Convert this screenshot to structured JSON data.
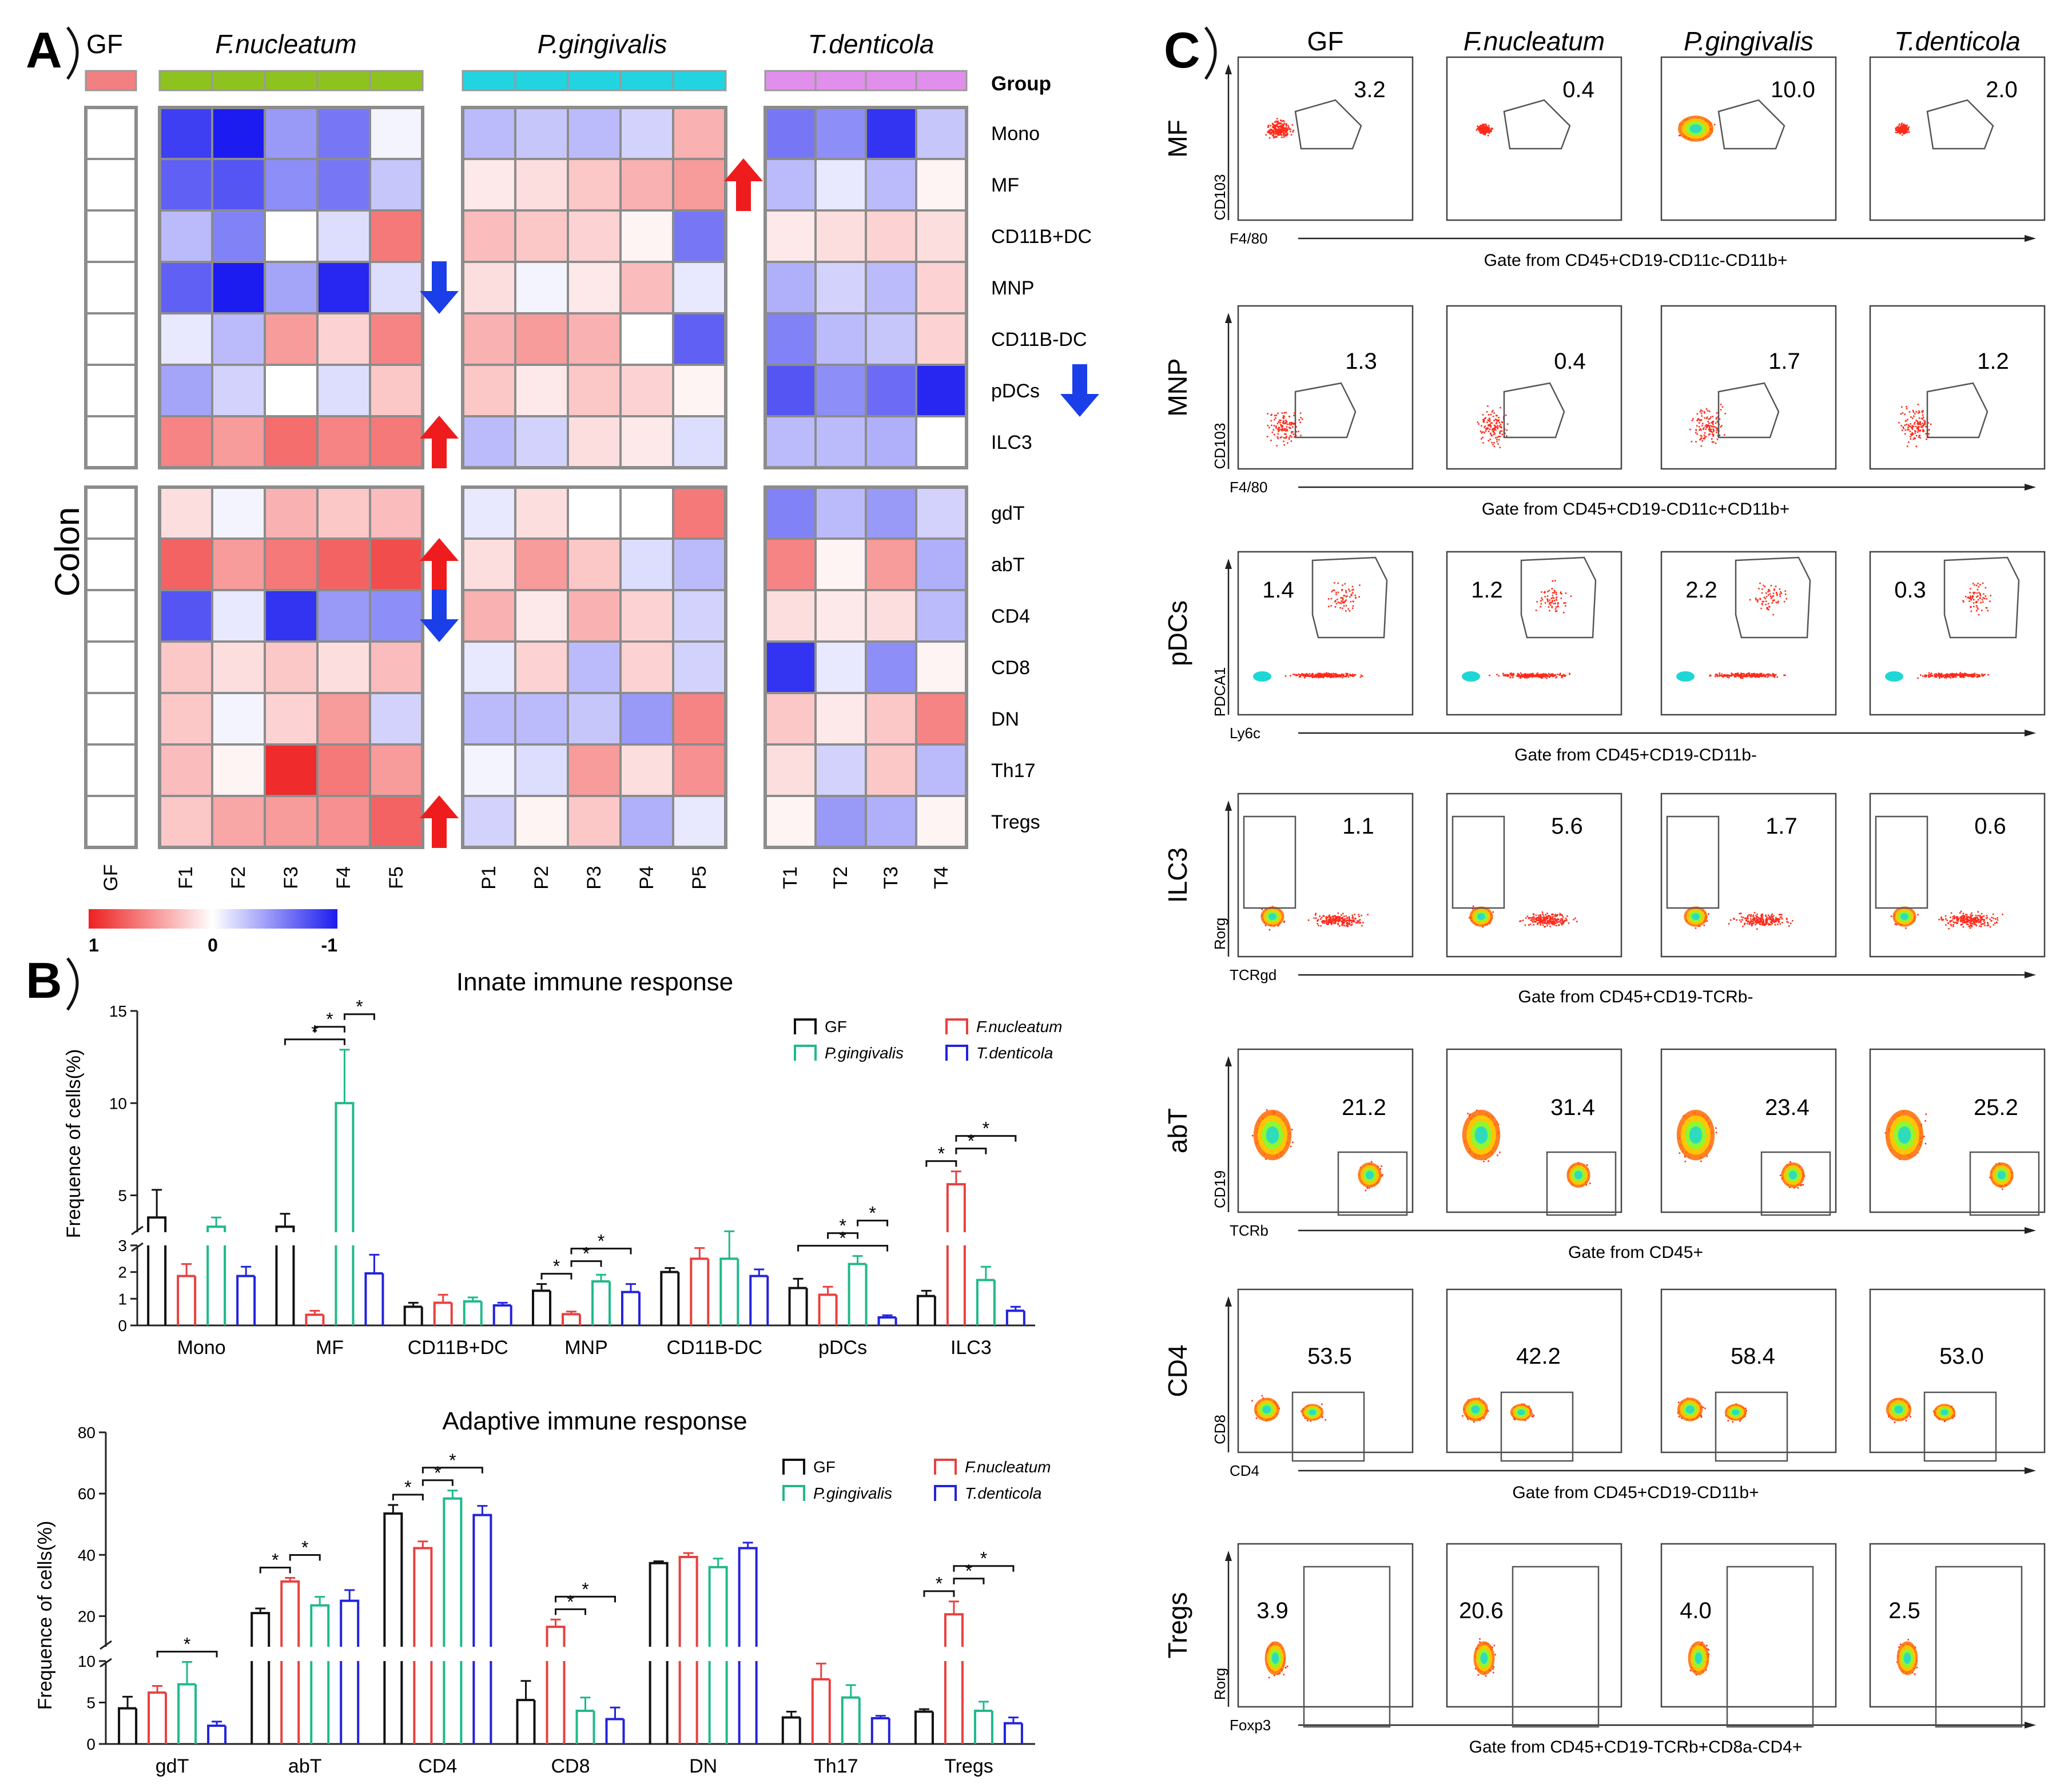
{
  "figure": {
    "panel_a_label": "A",
    "panel_b_label": "B",
    "panel_c_label": "C"
  },
  "chart_data": [
    {
      "id": "A",
      "type": "heatmap",
      "tissue_label": "Colon",
      "group_row_label": "Group",
      "groups": [
        {
          "name": "GF",
          "italic": false,
          "color": "#f28080",
          "samples": [
            "GF"
          ]
        },
        {
          "name": "F.nucleatum",
          "italic": true,
          "color": "#8dc21f",
          "samples": [
            "F1",
            "F2",
            "F3",
            "F4",
            "F5"
          ]
        },
        {
          "name": "P.gingivalis",
          "italic": true,
          "color": "#22d3e0",
          "samples": [
            "P1",
            "P2",
            "P3",
            "P4",
            "P5"
          ]
        },
        {
          "name": "T.denticola",
          "italic": true,
          "color": "#e090ea",
          "samples": [
            "T1",
            "T2",
            "T3",
            "T4"
          ]
        }
      ],
      "row_blocks": [
        [
          "Mono",
          "MF",
          "CD11B+DC",
          "MNP",
          "CD11B-DC",
          "pDCs",
          "ILC3"
        ],
        [
          "gdT",
          "abT",
          "CD4",
          "CD8",
          "DN",
          "Th17",
          "Tregs"
        ]
      ],
      "values": {
        "GF": [
          0,
          0,
          0,
          0,
          0,
          0,
          0,
          0,
          0,
          0,
          0,
          0,
          0,
          0
        ],
        "F.nucleatum": [
          [
            -0.85,
            -1.0,
            -0.45,
            -0.6,
            -0.05
          ],
          [
            -0.7,
            -0.75,
            -0.5,
            -0.6,
            -0.25
          ],
          [
            -0.3,
            -0.55,
            0.0,
            -0.15,
            0.6
          ],
          [
            -0.7,
            -1.0,
            -0.4,
            -0.95,
            -0.15
          ],
          [
            -0.1,
            -0.3,
            0.45,
            0.2,
            0.55
          ],
          [
            -0.4,
            -0.2,
            0.0,
            -0.15,
            0.25
          ],
          [
            0.55,
            0.45,
            0.65,
            0.55,
            0.6
          ],
          [
            0.15,
            -0.05,
            0.35,
            0.25,
            0.3
          ],
          [
            0.7,
            0.45,
            0.6,
            0.7,
            0.8
          ],
          [
            -0.75,
            -0.1,
            -0.9,
            -0.45,
            -0.5
          ],
          [
            0.25,
            0.15,
            0.25,
            0.15,
            0.3
          ],
          [
            0.25,
            -0.05,
            0.2,
            0.45,
            -0.2
          ],
          [
            0.3,
            0.05,
            0.95,
            0.6,
            0.45
          ],
          [
            0.25,
            0.4,
            0.45,
            0.5,
            0.7
          ]
        ],
        "P.gingivalis": [
          [
            -0.3,
            -0.25,
            -0.3,
            -0.2,
            0.35
          ],
          [
            0.1,
            0.15,
            0.25,
            0.35,
            0.45
          ],
          [
            0.3,
            0.25,
            0.2,
            0.05,
            -0.6
          ],
          [
            0.15,
            -0.05,
            0.1,
            0.3,
            -0.1
          ],
          [
            0.35,
            0.45,
            0.35,
            0.0,
            -0.7
          ],
          [
            0.25,
            0.1,
            0.25,
            0.2,
            0.05
          ],
          [
            -0.3,
            -0.2,
            0.15,
            0.1,
            -0.15
          ],
          [
            -0.1,
            0.15,
            0.0,
            0.0,
            0.6
          ],
          [
            0.15,
            0.45,
            0.25,
            -0.15,
            -0.3
          ],
          [
            0.35,
            0.1,
            0.35,
            0.2,
            -0.2
          ],
          [
            -0.1,
            0.2,
            -0.3,
            0.2,
            -0.2
          ],
          [
            -0.3,
            -0.3,
            -0.25,
            -0.45,
            0.55
          ],
          [
            -0.05,
            -0.15,
            0.45,
            0.15,
            0.5
          ],
          [
            -0.2,
            0.05,
            0.25,
            -0.35,
            -0.1
          ]
        ],
        "T.denticola": [
          [
            -0.6,
            -0.5,
            -0.9,
            -0.25
          ],
          [
            -0.3,
            -0.1,
            -0.3,
            0.05
          ],
          [
            0.1,
            0.15,
            0.2,
            0.15
          ],
          [
            -0.35,
            -0.2,
            -0.3,
            0.2
          ],
          [
            -0.55,
            -0.3,
            -0.25,
            0.2
          ],
          [
            -0.75,
            -0.5,
            -0.65,
            -0.95
          ],
          [
            -0.3,
            -0.3,
            -0.35,
            0.0
          ],
          [
            -0.55,
            -0.3,
            -0.45,
            -0.2
          ],
          [
            0.55,
            0.05,
            0.45,
            -0.35
          ],
          [
            0.15,
            0.1,
            0.15,
            -0.3
          ],
          [
            -0.9,
            -0.1,
            -0.5,
            0.05
          ],
          [
            0.25,
            0.1,
            0.25,
            0.55
          ],
          [
            0.15,
            -0.2,
            0.25,
            -0.3
          ],
          [
            0.05,
            -0.45,
            -0.35,
            0.05
          ]
        ]
      },
      "arrows": [
        {
          "row": "MF",
          "after_group": "P.gingivalis",
          "direction": "up"
        },
        {
          "row": "MNP",
          "after_group": "F.nucleatum",
          "direction": "down"
        },
        {
          "row": "pDCs",
          "after_group": "T.denticola",
          "direction": "down"
        },
        {
          "row": "ILC3",
          "after_group": "F.nucleatum",
          "direction": "up"
        },
        {
          "row": "abT",
          "after_group": "F.nucleatum",
          "direction": "up"
        },
        {
          "row": "CD4",
          "after_group": "F.nucleatum",
          "direction": "down"
        },
        {
          "row": "Tregs",
          "after_group": "F.nucleatum",
          "direction": "up"
        }
      ],
      "color_scale": {
        "max_label": "1",
        "mid_label": "0",
        "min_label": "-1",
        "high_color": "#ee2020",
        "mid_color": "#ffffff",
        "low_color": "#1c1cf0"
      }
    },
    {
      "id": "B1",
      "type": "bar",
      "title": "Innate immune response",
      "ylabel": "Frequence of cells(%)",
      "categories": [
        "Mono",
        "MF",
        "CD11B+DC",
        "MNP",
        "CD11B-DC",
        "pDCs",
        "ILC3"
      ],
      "broken_axis": {
        "lower": [
          0,
          3
        ],
        "upper": [
          3,
          15
        ],
        "lower_ticks": [
          "0",
          "1",
          "2",
          "3"
        ],
        "upper_ticks": [
          "5",
          "10",
          "15"
        ]
      },
      "series": [
        {
          "name": "GF",
          "italic": false,
          "color": "#111111",
          "values": [
            3.8,
            3.3,
            0.7,
            1.3,
            2.0,
            1.4,
            1.1
          ],
          "errors": [
            1.5,
            0.7,
            0.15,
            0.25,
            0.15,
            0.35,
            0.2
          ]
        },
        {
          "name": "F.nucleatum",
          "italic": true,
          "color": "#e84040",
          "values": [
            1.85,
            0.4,
            0.85,
            0.42,
            2.5,
            1.15,
            5.6
          ],
          "errors": [
            0.45,
            0.15,
            0.3,
            0.1,
            0.4,
            0.3,
            0.7
          ]
        },
        {
          "name": "P.gingivalis",
          "italic": true,
          "color": "#1fb98a",
          "values": [
            3.3,
            10.0,
            0.9,
            1.65,
            2.5,
            2.3,
            1.7
          ],
          "errors": [
            0.5,
            2.9,
            0.15,
            0.25,
            0.55,
            0.3,
            0.5
          ]
        },
        {
          "name": "T.denticola",
          "italic": true,
          "color": "#2222dd",
          "values": [
            1.85,
            1.95,
            0.75,
            1.25,
            1.85,
            0.3,
            0.55
          ],
          "errors": [
            0.35,
            0.7,
            0.1,
            0.3,
            0.25,
            0.08,
            0.15
          ]
        }
      ],
      "significance": [
        {
          "category": "MF",
          "from": 0,
          "to": 2,
          "label": "*"
        },
        {
          "category": "MF",
          "from": 1,
          "to": 2,
          "label": "*"
        },
        {
          "category": "MF",
          "from": 2,
          "to": 3,
          "label": "*"
        },
        {
          "category": "MNP",
          "from": 0,
          "to": 1,
          "label": "*"
        },
        {
          "category": "MNP",
          "from": 1,
          "to": 2,
          "label": "*"
        },
        {
          "category": "MNP",
          "from": 1,
          "to": 3,
          "label": "*"
        },
        {
          "category": "pDCs",
          "from": 0,
          "to": 3,
          "label": "*"
        },
        {
          "category": "pDCs",
          "from": 1,
          "to": 2,
          "label": "*"
        },
        {
          "category": "pDCs",
          "from": 2,
          "to": 3,
          "label": "*"
        },
        {
          "category": "ILC3",
          "from": 0,
          "to": 1,
          "label": "*"
        },
        {
          "category": "ILC3",
          "from": 1,
          "to": 2,
          "label": "*"
        },
        {
          "category": "ILC3",
          "from": 1,
          "to": 3,
          "label": "*"
        }
      ]
    },
    {
      "id": "B2",
      "type": "bar",
      "title": "Adaptive immune response",
      "ylabel": "Frequence of cells(%)",
      "categories": [
        "gdT",
        "abT",
        "CD4",
        "CD8",
        "DN",
        "Th17",
        "Tregs"
      ],
      "broken_axis": {
        "lower": [
          0,
          10
        ],
        "upper": [
          10,
          80
        ],
        "lower_ticks": [
          "0",
          "5",
          "10"
        ],
        "upper_ticks": [
          "20",
          "40",
          "60",
          "80"
        ]
      },
      "series": [
        {
          "name": "GF",
          "italic": false,
          "color": "#111111",
          "values": [
            4.3,
            21.0,
            53.5,
            5.3,
            37.3,
            3.2,
            3.9
          ],
          "errors": [
            1.4,
            1.5,
            2.8,
            2.3,
            0.6,
            0.7,
            0.3
          ]
        },
        {
          "name": "F.nucleatum",
          "italic": true,
          "color": "#e84040",
          "values": [
            6.2,
            31.3,
            42.2,
            16.5,
            39.3,
            7.8,
            20.6
          ],
          "errors": [
            0.8,
            1.2,
            2.2,
            2.4,
            1.3,
            1.9,
            4.2
          ]
        },
        {
          "name": "P.gingivalis",
          "italic": true,
          "color": "#1fb98a",
          "values": [
            7.2,
            23.5,
            58.4,
            4.0,
            36.0,
            5.6,
            4.0
          ],
          "errors": [
            2.7,
            2.8,
            2.6,
            1.6,
            2.8,
            1.5,
            1.1
          ]
        },
        {
          "name": "T.denticola",
          "italic": true,
          "color": "#2222dd",
          "values": [
            2.2,
            25.0,
            53.0,
            3.0,
            42.2,
            3.1,
            2.5
          ],
          "errors": [
            0.5,
            3.5,
            3.0,
            1.4,
            1.8,
            0.3,
            0.7
          ]
        }
      ],
      "significance": [
        {
          "category": "gdT",
          "from": 1,
          "to": 3,
          "label": "*"
        },
        {
          "category": "abT",
          "from": 0,
          "to": 1,
          "label": "*"
        },
        {
          "category": "abT",
          "from": 1,
          "to": 2,
          "label": "*"
        },
        {
          "category": "CD4",
          "from": 0,
          "to": 1,
          "label": "*"
        },
        {
          "category": "CD4",
          "from": 1,
          "to": 2,
          "label": "*"
        },
        {
          "category": "CD4",
          "from": 1,
          "to": 3,
          "label": "*"
        },
        {
          "category": "CD8",
          "from": 1,
          "to": 2,
          "label": "*"
        },
        {
          "category": "CD8",
          "from": 1,
          "to": 3,
          "label": "*"
        },
        {
          "category": "Tregs",
          "from": 0,
          "to": 1,
          "label": "*"
        },
        {
          "category": "Tregs",
          "from": 1,
          "to": 2,
          "label": "*"
        },
        {
          "category": "Tregs",
          "from": 1,
          "to": 3,
          "label": "*"
        }
      ]
    },
    {
      "id": "C",
      "type": "scatter",
      "columns": [
        {
          "name": "GF",
          "italic": false
        },
        {
          "name": "F.nucleatum",
          "italic": true
        },
        {
          "name": "P.gingivalis",
          "italic": true
        },
        {
          "name": "T.denticola",
          "italic": true
        }
      ],
      "rows": [
        {
          "name": "MF",
          "ylabel": "CD103",
          "xlabel": "F4/80",
          "gate_text": "Gate from CD45+CD19-CD11c-CD11b+",
          "values": [
            "3.2",
            "0.4",
            "10.0",
            "2.0"
          ]
        },
        {
          "name": "MNP",
          "ylabel": "CD103",
          "xlabel": "F4/80",
          "gate_text": "Gate from CD45+CD19-CD11c+CD11b+",
          "values": [
            "1.3",
            "0.4",
            "1.7",
            "1.2"
          ]
        },
        {
          "name": "pDCs",
          "ylabel": "PDCA1",
          "xlabel": "Ly6c",
          "gate_text": "Gate from CD45+CD19-CD11b-",
          "values": [
            "1.4",
            "1.2",
            "2.2",
            "0.3"
          ]
        },
        {
          "name": "ILC3",
          "ylabel": "Rorg",
          "xlabel": "TCRgd",
          "gate_text": "Gate from CD45+CD19-TCRb-",
          "values": [
            "1.1",
            "5.6",
            "1.7",
            "0.6"
          ]
        },
        {
          "name": "abT",
          "ylabel": "CD19",
          "xlabel": "TCRb",
          "gate_text": "Gate from CD45+",
          "values": [
            "21.2",
            "31.4",
            "23.4",
            "25.2"
          ]
        },
        {
          "name": "CD4",
          "ylabel": "CD8",
          "xlabel": "CD4",
          "gate_text": "Gate from CD45+CD19-CD11b+",
          "values": [
            "53.5",
            "42.2",
            "58.4",
            "53.0"
          ]
        },
        {
          "name": "Tregs",
          "ylabel": "Rorg",
          "xlabel": "Foxp3",
          "gate_text": "Gate from CD45+CD19-TCRb+CD8a-CD4+",
          "values": [
            "3.9",
            "20.6",
            "4.0",
            "2.5"
          ]
        }
      ]
    }
  ]
}
